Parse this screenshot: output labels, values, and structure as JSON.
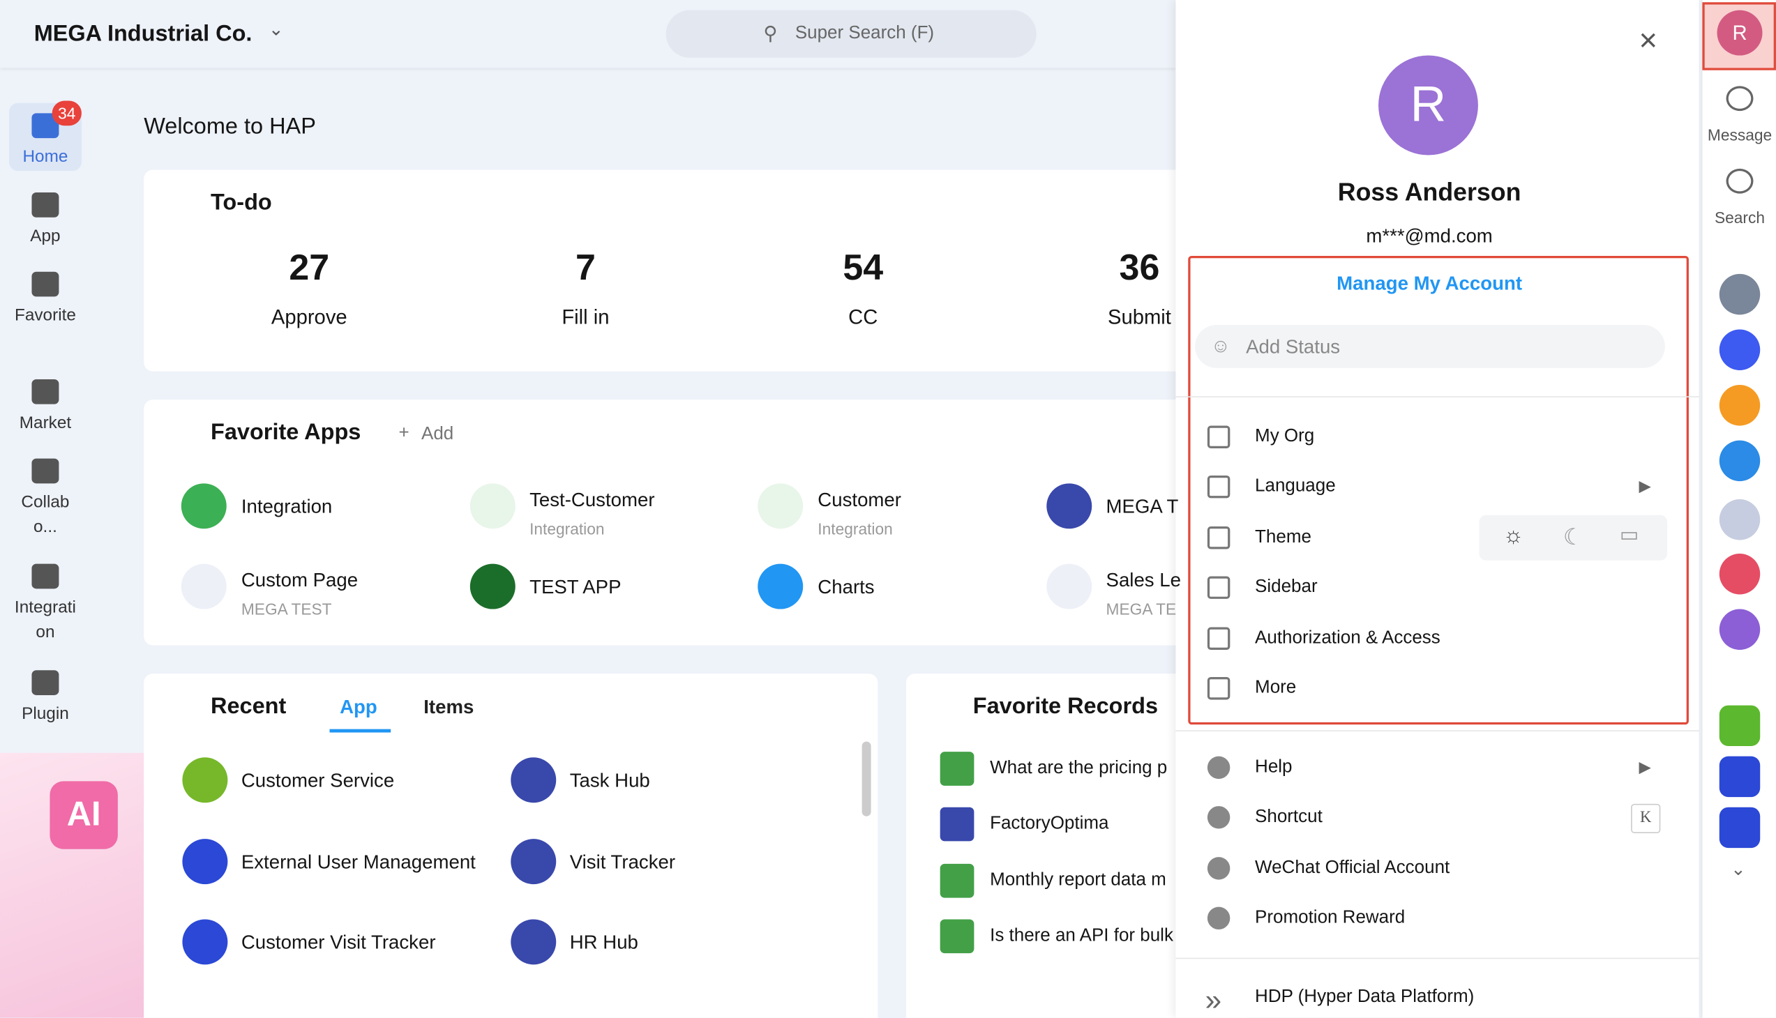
{
  "header": {
    "company": "MEGA Industrial Co.",
    "search": "Super Search (F)"
  },
  "nav": [
    {
      "label": "Home",
      "badge": "34"
    },
    {
      "label": "App"
    },
    {
      "label": "Favorite"
    },
    {
      "label": "Market"
    },
    {
      "label": "Collabo..."
    },
    {
      "label": "Integration"
    },
    {
      "label": "Plugin"
    }
  ],
  "welcome": "Welcome to HAP",
  "todo": {
    "title": "To-do",
    "items": [
      {
        "count": "27",
        "label": "Approve"
      },
      {
        "count": "7",
        "label": "Fill in"
      },
      {
        "count": "54",
        "label": "CC"
      },
      {
        "count": "36",
        "label": "Submit"
      }
    ]
  },
  "favorite_apps": {
    "title": "Favorite Apps",
    "add": "Add",
    "apps": [
      {
        "name": "Integration"
      },
      {
        "name": "Test-Customer",
        "sub": "Integration"
      },
      {
        "name": "Customer",
        "sub": "Integration"
      },
      {
        "name": "MEGA T"
      },
      {
        "name": "Custom Page",
        "sub": "MEGA TEST"
      },
      {
        "name": "TEST APP"
      },
      {
        "name": "Charts"
      },
      {
        "name": "Sales Le",
        "sub": "MEGA TE"
      }
    ]
  },
  "recent": {
    "title": "Recent",
    "tabs": [
      "App",
      "Items"
    ],
    "items": [
      "Customer Service",
      "Task Hub",
      "External User Management",
      "Visit Tracker",
      "Customer Visit Tracker",
      "HR Hub"
    ]
  },
  "favorite_records": {
    "title": "Favorite Records",
    "records": [
      "What are the pricing p",
      "FactoryOptima",
      "Monthly report data m",
      "Is there an API for bulk"
    ]
  },
  "profile": {
    "initial": "R",
    "name": "Ross Anderson",
    "email": "m***@md.com",
    "manage": "Manage My Account",
    "status": "Add Status",
    "menu": [
      "My Org",
      "Language",
      "Theme",
      "Sidebar",
      "Authorization & Access",
      "More"
    ],
    "menu2": [
      {
        "label": "Help"
      },
      {
        "label": "Shortcut",
        "key": "K"
      },
      {
        "label": "WeChat Official Account"
      },
      {
        "label": "Promotion Reward"
      }
    ],
    "hdp": "HDP (Hyper Data Platform)"
  },
  "rail": {
    "avatar": "R",
    "items": [
      "Message",
      "Search"
    ]
  }
}
